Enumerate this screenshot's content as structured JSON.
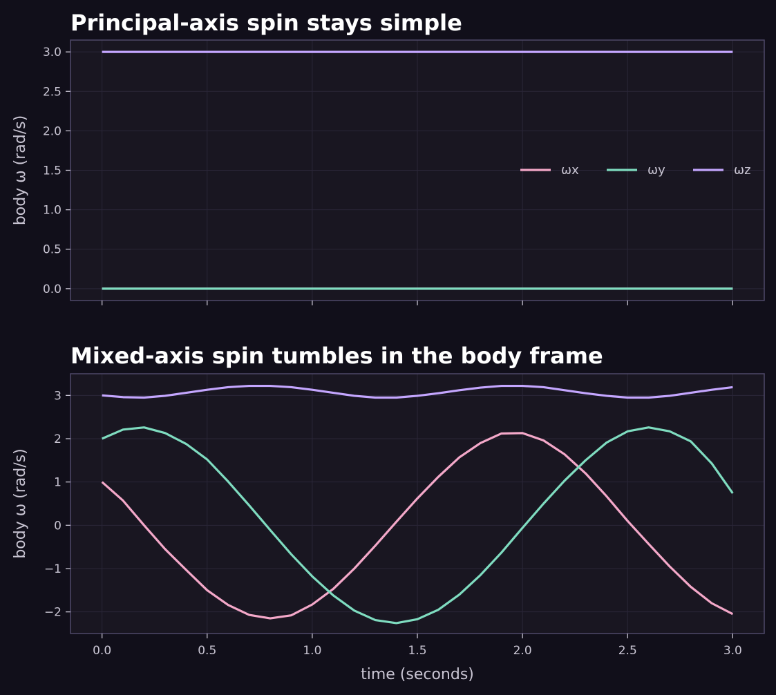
{
  "chart_data": [
    {
      "type": "line",
      "title": "Principal-axis spin stays simple",
      "xlabel": "",
      "ylabel": "body ω (rad/s)",
      "xlim": [
        -0.15,
        3.15
      ],
      "ylim": [
        -0.15,
        3.15
      ],
      "xticks": [
        0.0,
        0.5,
        1.0,
        1.5,
        2.0,
        2.5,
        3.0
      ],
      "xtick_labels_visible": false,
      "yticks": [
        0.0,
        0.5,
        1.0,
        1.5,
        2.0,
        2.5,
        3.0
      ],
      "ytick_labels": [
        "0.0",
        "0.5",
        "1.0",
        "1.5",
        "2.0",
        "2.5",
        "3.0"
      ],
      "grid": true,
      "legend": {
        "position": "right",
        "columns": 3
      },
      "x": [
        0.0,
        0.25,
        0.5,
        0.75,
        1.0,
        1.25,
        1.5,
        1.75,
        2.0,
        2.25,
        2.5,
        2.75,
        3.0
      ],
      "series": [
        {
          "name": "ωx",
          "color": "#f4a8c9",
          "values": [
            0,
            0,
            0,
            0,
            0,
            0,
            0,
            0,
            0,
            0,
            0,
            0,
            0
          ]
        },
        {
          "name": "ωy",
          "color": "#7fdcc0",
          "values": [
            0,
            0,
            0,
            0,
            0,
            0,
            0,
            0,
            0,
            0,
            0,
            0,
            0
          ]
        },
        {
          "name": "ωz",
          "color": "#c4a6ff",
          "values": [
            3,
            3,
            3,
            3,
            3,
            3,
            3,
            3,
            3,
            3,
            3,
            3,
            3
          ]
        }
      ]
    },
    {
      "type": "line",
      "title": "Mixed-axis spin tumbles in the body frame",
      "xlabel": "time (seconds)",
      "ylabel": "body ω (rad/s)",
      "xlim": [
        -0.15,
        3.15
      ],
      "ylim": [
        -2.5,
        3.5
      ],
      "xticks": [
        0.0,
        0.5,
        1.0,
        1.5,
        2.0,
        2.5,
        3.0
      ],
      "xtick_labels": [
        "0.0",
        "0.5",
        "1.0",
        "1.5",
        "2.0",
        "2.5",
        "3.0"
      ],
      "xtick_labels_visible": true,
      "yticks": [
        -2,
        -1,
        0,
        1,
        2,
        3
      ],
      "ytick_labels": [
        "−2",
        "−1",
        "0",
        "1",
        "2",
        "3"
      ],
      "grid": true,
      "x": [
        0.0,
        0.1,
        0.2,
        0.3,
        0.4,
        0.5,
        0.6,
        0.7,
        0.8,
        0.9,
        1.0,
        1.1,
        1.2,
        1.3,
        1.4,
        1.5,
        1.6,
        1.7,
        1.8,
        1.9,
        2.0,
        2.1,
        2.2,
        2.3,
        2.4,
        2.5,
        2.6,
        2.7,
        2.8,
        2.9,
        3.0
      ],
      "series": [
        {
          "name": "ωx",
          "color": "#f4a8c9",
          "values": [
            1.0,
            0.57,
            0.0,
            -0.55,
            -1.03,
            -1.5,
            -1.84,
            -2.07,
            -2.15,
            -2.08,
            -1.83,
            -1.47,
            -1.0,
            -0.47,
            0.08,
            0.62,
            1.12,
            1.57,
            1.9,
            2.12,
            2.13,
            1.96,
            1.64,
            1.2,
            0.67,
            0.1,
            -0.43,
            -0.95,
            -1.42,
            -1.8,
            -2.05
          ]
        },
        {
          "name": "ωy",
          "color": "#7fdcc0",
          "values": [
            2.0,
            2.21,
            2.26,
            2.13,
            1.88,
            1.52,
            1.01,
            0.46,
            -0.11,
            -0.67,
            -1.18,
            -1.62,
            -1.97,
            -2.19,
            -2.26,
            -2.17,
            -1.95,
            -1.6,
            -1.15,
            -0.63,
            -0.06,
            0.5,
            1.03,
            1.5,
            1.91,
            2.17,
            2.26,
            2.17,
            1.94,
            1.43,
            0.74
          ]
        },
        {
          "name": "ωz",
          "color": "#c4a6ff",
          "values": [
            3.0,
            2.96,
            2.95,
            2.99,
            3.06,
            3.13,
            3.19,
            3.22,
            3.22,
            3.19,
            3.13,
            3.06,
            2.99,
            2.95,
            2.95,
            2.99,
            3.05,
            3.12,
            3.18,
            3.22,
            3.22,
            3.19,
            3.12,
            3.05,
            2.99,
            2.95,
            2.95,
            2.99,
            3.06,
            3.13,
            3.19
          ]
        }
      ]
    }
  ],
  "colors": {
    "figure_background": "#110f1a",
    "axes_background": "#191621",
    "axes_border": "#4f4869",
    "grid": "#2a2638",
    "text": "#c9c5d3",
    "title": "#ffffff"
  }
}
